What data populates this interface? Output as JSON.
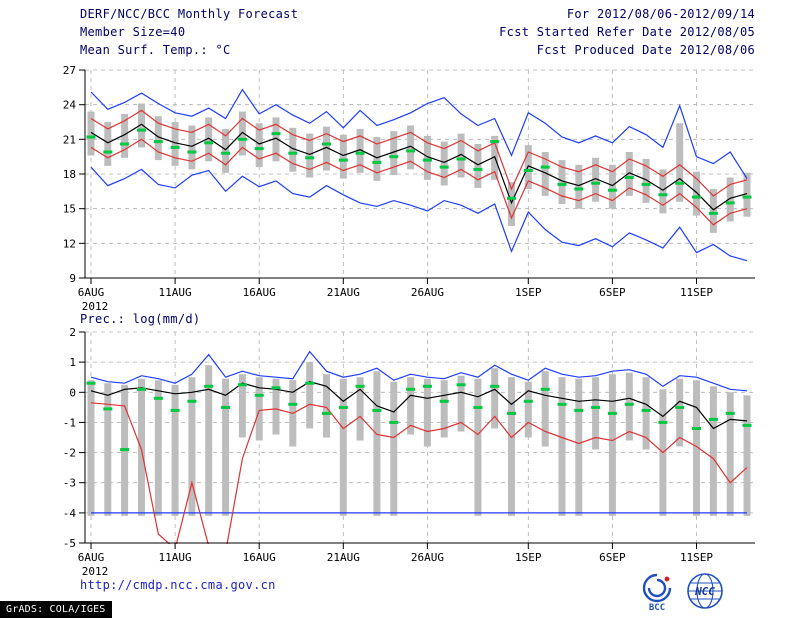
{
  "header": {
    "title": "DERF/NCC/BCC Monthly Forecast",
    "date_range": "For 2012/08/06-2012/09/14",
    "member_size": "Member Size=40",
    "fcst_started": "Fcst Started Refer Date 2012/08/05",
    "top_panel_label": "Mean Surf. Temp.: °C",
    "fcst_produced": "Fcst Produced Date 2012/08/06",
    "bottom_panel_label": "Prec.: log(mm/d)"
  },
  "footer": {
    "url": "http://cmdp.ncc.cma.gov.cn",
    "grads_credit": "GrADS: COLA/IGES",
    "logos": [
      {
        "name": "bcc-logo",
        "label": "BCC"
      },
      {
        "name": "ncc-logo",
        "label": "NCC"
      }
    ]
  },
  "colors": {
    "line_blue": "#1e3cff",
    "line_red": "#e03232",
    "line_black": "#000000",
    "bar_gray": "#bdbdbd",
    "marker_green": "#00c840",
    "grid_gray": "#b0b0b0",
    "header_text": "#000066",
    "link_blue": "#2020cc",
    "logo_blue": "#2050c0",
    "logo_red": "#d82020"
  },
  "chart_data": [
    {
      "type": "line",
      "name": "surface-temperature",
      "title": "Mean Surf. Temp.: °C",
      "xlabel": "",
      "ylabel": "°C",
      "ylim": [
        9,
        27
      ],
      "yticks": [
        9,
        12,
        15,
        18,
        21,
        24,
        27
      ],
      "grid": true,
      "n_points": 40,
      "x_year_label": "2012",
      "x_ticks": [
        {
          "index": 0,
          "label": "6AUG"
        },
        {
          "index": 5,
          "label": "11AUG"
        },
        {
          "index": 10,
          "label": "16AUG"
        },
        {
          "index": 15,
          "label": "21AUG"
        },
        {
          "index": 20,
          "label": "26AUG"
        },
        {
          "index": 26,
          "label": "1SEP"
        },
        {
          "index": 31,
          "label": "6SEP"
        },
        {
          "index": 36,
          "label": "11SEP"
        }
      ],
      "series": [
        {
          "name": "max",
          "color": "blue",
          "values": [
            25.1,
            23.6,
            24.2,
            25.0,
            24.1,
            23.3,
            23.0,
            23.7,
            22.8,
            25.3,
            23.2,
            24.0,
            23.1,
            22.4,
            23.4,
            22.0,
            23.5,
            22.2,
            22.7,
            23.3,
            24.1,
            24.6,
            23.2,
            22.2,
            22.8,
            19.6,
            23.3,
            22.4,
            21.2,
            20.7,
            21.3,
            20.7,
            22.1,
            21.4,
            20.3,
            23.9,
            19.5,
            18.9,
            19.9,
            17.6
          ]
        },
        {
          "name": "min",
          "color": "blue",
          "values": [
            18.6,
            17.0,
            17.6,
            18.4,
            17.1,
            16.8,
            17.9,
            18.3,
            16.5,
            17.8,
            16.9,
            17.4,
            16.3,
            16.0,
            17.0,
            16.2,
            15.5,
            15.2,
            15.7,
            15.3,
            14.8,
            15.7,
            15.3,
            14.6,
            15.4,
            11.3,
            14.7,
            13.2,
            12.1,
            11.8,
            12.4,
            11.7,
            12.9,
            12.3,
            11.6,
            13.4,
            11.2,
            11.9,
            10.9,
            10.5
          ]
        },
        {
          "name": "mean-plus-std",
          "color": "red",
          "values": [
            22.8,
            21.9,
            22.6,
            23.5,
            22.4,
            21.9,
            21.6,
            22.3,
            21.3,
            22.8,
            21.8,
            22.3,
            21.4,
            20.9,
            21.5,
            20.8,
            21.3,
            20.6,
            21.1,
            21.6,
            20.7,
            20.2,
            20.9,
            20.0,
            20.7,
            16.7,
            19.9,
            19.3,
            18.6,
            18.2,
            18.8,
            18.2,
            19.3,
            18.7,
            17.8,
            18.8,
            17.6,
            16.1,
            17.1,
            17.5
          ]
        },
        {
          "name": "mean-minus-std",
          "color": "red",
          "values": [
            20.3,
            19.4,
            20.1,
            21.0,
            19.9,
            19.4,
            19.1,
            19.8,
            18.8,
            20.3,
            19.3,
            19.8,
            18.9,
            18.4,
            19.0,
            18.3,
            18.8,
            18.1,
            18.6,
            19.1,
            18.2,
            17.7,
            18.4,
            17.5,
            18.2,
            14.2,
            17.4,
            16.8,
            16.1,
            15.7,
            16.3,
            15.7,
            16.8,
            16.2,
            15.3,
            16.3,
            15.1,
            13.6,
            14.6,
            15.0
          ]
        },
        {
          "name": "ensemble-mean",
          "color": "black",
          "values": [
            21.6,
            20.7,
            21.4,
            22.3,
            21.2,
            20.7,
            20.4,
            21.1,
            20.1,
            21.6,
            20.6,
            21.1,
            20.2,
            19.7,
            20.3,
            19.6,
            20.1,
            19.4,
            19.9,
            20.4,
            19.5,
            19.0,
            19.7,
            18.8,
            19.5,
            15.5,
            18.7,
            18.1,
            17.4,
            17.0,
            17.6,
            17.0,
            18.1,
            17.5,
            16.6,
            17.6,
            16.4,
            14.9,
            15.9,
            16.3
          ]
        }
      ],
      "bars": {
        "name": "temp-spread-bars",
        "color": "gray",
        "high": [
          23.4,
          22.5,
          23.2,
          24.1,
          23.0,
          22.5,
          22.2,
          22.9,
          21.9,
          23.4,
          22.4,
          22.9,
          22.0,
          21.5,
          22.1,
          21.4,
          21.9,
          21.2,
          21.7,
          22.2,
          21.3,
          20.8,
          21.5,
          20.6,
          21.3,
          17.3,
          20.5,
          19.9,
          19.2,
          18.8,
          19.4,
          18.8,
          19.9,
          19.3,
          18.4,
          22.4,
          18.2,
          16.7,
          17.7,
          18.1
        ],
        "low": [
          19.6,
          18.7,
          19.4,
          20.3,
          19.2,
          18.7,
          18.4,
          19.1,
          18.1,
          19.6,
          18.6,
          19.1,
          18.2,
          17.7,
          18.3,
          17.6,
          18.1,
          17.4,
          17.9,
          18.4,
          17.5,
          17.0,
          17.7,
          16.8,
          17.5,
          13.5,
          16.7,
          16.1,
          15.4,
          15.0,
          15.6,
          15.0,
          16.1,
          15.5,
          14.6,
          15.6,
          14.4,
          12.9,
          13.9,
          14.3
        ]
      },
      "markers": {
        "name": "temp-median-markers",
        "color": "green",
        "values": [
          21.2,
          19.9,
          20.6,
          21.8,
          20.8,
          20.3,
          19.9,
          20.7,
          19.8,
          21.0,
          20.2,
          21.5,
          19.8,
          19.4,
          20.6,
          19.2,
          19.8,
          19.0,
          19.5,
          20.0,
          19.2,
          18.6,
          19.3,
          18.4,
          20.8,
          15.9,
          18.3,
          18.6,
          17.1,
          16.7,
          17.2,
          16.6,
          17.7,
          17.1,
          16.2,
          17.2,
          16.0,
          14.6,
          15.5,
          16.0
        ]
      }
    },
    {
      "type": "line",
      "name": "precipitation",
      "title": "Prec.: log(mm/d)",
      "xlabel": "",
      "ylabel": "log(mm/d)",
      "ylim": [
        -5,
        2
      ],
      "yticks": [
        -5,
        -4,
        -3,
        -2,
        -1,
        0,
        1,
        2
      ],
      "grid": true,
      "n_points": 40,
      "x_year_label": "2012",
      "x_ticks": [
        {
          "index": 0,
          "label": "6AUG"
        },
        {
          "index": 5,
          "label": "11AUG"
        },
        {
          "index": 10,
          "label": "16AUG"
        },
        {
          "index": 15,
          "label": "21AUG"
        },
        {
          "index": 20,
          "label": "26AUG"
        },
        {
          "index": 26,
          "label": "1SEP"
        },
        {
          "index": 31,
          "label": "6SEP"
        },
        {
          "index": 36,
          "label": "11SEP"
        }
      ],
      "series": [
        {
          "name": "max",
          "color": "blue",
          "values": [
            0.5,
            0.35,
            0.3,
            0.55,
            0.45,
            0.3,
            0.6,
            1.25,
            0.5,
            0.7,
            0.55,
            0.5,
            0.45,
            1.35,
            0.7,
            0.5,
            0.6,
            0.8,
            0.4,
            0.6,
            0.5,
            0.45,
            0.65,
            0.5,
            0.9,
            0.6,
            0.4,
            0.8,
            0.6,
            0.5,
            0.55,
            0.7,
            0.75,
            0.6,
            0.2,
            0.55,
            0.5,
            0.3,
            0.1,
            0.05
          ]
        },
        {
          "name": "min-clamped",
          "color": "blue",
          "values": [
            -4,
            -4,
            -4,
            -4,
            -4,
            -4,
            -4,
            -4,
            -4,
            -4,
            -4,
            -4,
            -4,
            -4,
            -4,
            -4,
            -4,
            -4,
            -4,
            -4,
            -4,
            -4,
            -4,
            -4,
            -4,
            -4,
            -4,
            -4,
            -4,
            -4,
            -4,
            -4,
            -4,
            -4,
            -4,
            -4,
            -4,
            -4,
            -4,
            -4
          ]
        },
        {
          "name": "mean-minus-std",
          "color": "red",
          "values": [
            -0.35,
            -0.4,
            -0.45,
            -1.9,
            -4.7,
            -5.2,
            -3.0,
            -5.1,
            -5.3,
            -2.2,
            -0.6,
            -0.55,
            -0.7,
            -0.4,
            -0.5,
            -1.2,
            -0.8,
            -1.4,
            -1.5,
            -1.1,
            -1.3,
            -1.2,
            -1.0,
            -1.4,
            -0.8,
            -1.5,
            -1.0,
            -1.3,
            -1.5,
            -1.7,
            -1.5,
            -1.6,
            -1.3,
            -1.5,
            -2.0,
            -1.5,
            -1.8,
            -2.2,
            -3.0,
            -2.5
          ]
        },
        {
          "name": "ensemble-mean",
          "color": "black",
          "values": [
            0.05,
            -0.1,
            0.1,
            0.15,
            0.05,
            -0.05,
            0.0,
            0.1,
            -0.1,
            0.3,
            0.15,
            0.1,
            0.0,
            0.35,
            0.2,
            -0.3,
            0.1,
            -0.45,
            -0.65,
            -0.1,
            -0.2,
            -0.1,
            0.0,
            -0.15,
            0.1,
            -0.4,
            0.05,
            -0.1,
            -0.2,
            -0.3,
            -0.25,
            -0.3,
            -0.2,
            -0.4,
            -0.8,
            -0.3,
            -0.5,
            -1.2,
            -0.9,
            -0.95
          ]
        }
      ],
      "bars": {
        "name": "prec-spread-bars",
        "color": "gray",
        "high": [
          0.4,
          0.3,
          0.25,
          0.45,
          0.4,
          0.25,
          0.5,
          0.9,
          0.45,
          0.6,
          0.5,
          0.45,
          0.4,
          1.0,
          0.6,
          0.45,
          0.5,
          0.7,
          0.35,
          0.5,
          0.45,
          0.4,
          0.55,
          0.45,
          0.8,
          0.5,
          0.35,
          0.7,
          0.5,
          0.45,
          0.5,
          0.6,
          0.65,
          0.5,
          0.1,
          0.45,
          0.4,
          0.2,
          0.0,
          -0.1
        ],
        "low": [
          -4.1,
          -4.1,
          -4.1,
          -4.1,
          -4.1,
          -4.1,
          -4.1,
          -4.1,
          -4.1,
          -1.5,
          -1.6,
          -1.4,
          -1.8,
          -1.2,
          -1.5,
          -4.1,
          -1.6,
          -4.1,
          -4.1,
          -1.4,
          -1.8,
          -1.5,
          -1.3,
          -4.1,
          -1.2,
          -4.1,
          -1.5,
          -1.8,
          -4.1,
          -4.1,
          -1.9,
          -4.1,
          -1.6,
          -1.9,
          -4.1,
          -1.8,
          -4.1,
          -4.1,
          -4.1,
          -4.1
        ]
      },
      "markers": {
        "name": "prec-median-markers",
        "color": "green",
        "values": [
          0.3,
          -0.55,
          -1.9,
          0.1,
          -0.2,
          -0.6,
          -0.3,
          0.2,
          -0.5,
          0.25,
          -0.1,
          0.15,
          -0.4,
          0.3,
          -0.7,
          -0.5,
          0.2,
          -0.6,
          -1.0,
          0.1,
          0.2,
          -0.3,
          0.25,
          -0.5,
          0.2,
          -0.7,
          -0.3,
          0.1,
          -0.4,
          -0.6,
          -0.5,
          -0.7,
          -0.4,
          -0.6,
          -1.0,
          -0.5,
          -1.2,
          -0.9,
          -0.7,
          -1.1
        ]
      }
    }
  ]
}
